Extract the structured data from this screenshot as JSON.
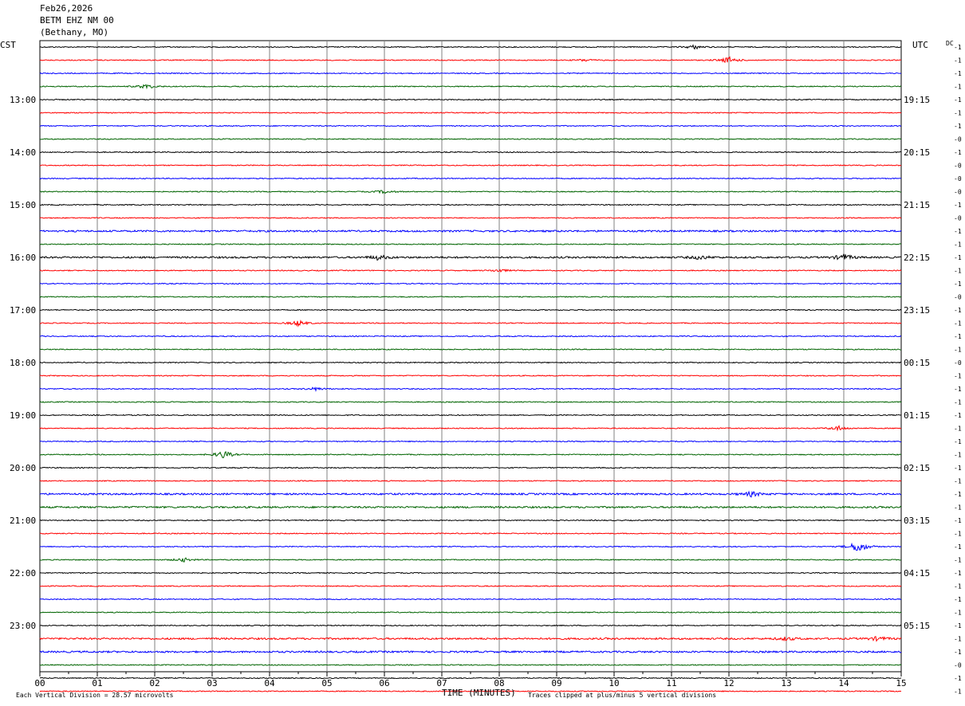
{
  "header": {
    "date": "Feb26,2026",
    "station": "BETM EHZ NM 00",
    "location": "(Bethany, MO)"
  },
  "left_tz": "CST",
  "right_tz": "UTC",
  "dc_label": "DC",
  "footer": {
    "scale": "Each Vertical Division =   28.57 microvolts",
    "xlabel": "TIME (MINUTES)",
    "clip_note": "Traces clipped at plus/minus 5 vertical divisions"
  },
  "colors": {
    "black": "#000000",
    "red": "#ff0000",
    "blue": "#0000ff",
    "green": "#006400",
    "grid": "#808080"
  },
  "chart_data": {
    "type": "line",
    "title": "BETM EHZ NM 00",
    "xlabel": "TIME (MINUTES)",
    "xlim": [
      0,
      15
    ],
    "x_ticks": [
      "00",
      "01",
      "02",
      "03",
      "04",
      "05",
      "06",
      "07",
      "08",
      "09",
      "10",
      "11",
      "12",
      "13",
      "14",
      "15"
    ],
    "color_cycle": [
      "black",
      "red",
      "blue",
      "green"
    ],
    "left_hour_labels": [
      "13:00",
      "14:00",
      "15:00",
      "16:00",
      "17:00",
      "18:00",
      "19:00",
      "20:00",
      "21:00",
      "22:00",
      "23:00"
    ],
    "right_hour_labels": [
      "19:15",
      "20:15",
      "21:15",
      "22:15",
      "23:15",
      "00:15",
      "01:15",
      "02:15",
      "03:15",
      "04:15",
      "05:15"
    ],
    "trace_offsets": [
      "-1",
      "-1",
      "-1",
      "-1",
      "-1",
      "-1",
      "-1",
      "-0",
      "-1",
      "-0",
      "-0",
      "-0",
      "-1",
      "-0",
      "-1",
      "-1",
      "-1",
      "-1",
      "-1",
      "-0",
      "-1",
      "-1",
      "-1",
      "-1",
      "-0",
      "-1",
      "-1",
      "-1",
      "-1",
      "-1",
      "-1",
      "-1",
      "-1",
      "-1",
      "-1",
      "-1",
      "-1",
      "-1",
      "-1",
      "-1",
      "-1",
      "-1",
      "-1",
      "-1",
      "-1",
      "-1",
      "-1",
      "-0",
      "-1",
      "-1"
    ],
    "events": [
      {
        "trace": 0,
        "minute": 11.4,
        "amp": 2.5
      },
      {
        "trace": 1,
        "minute": 12.0,
        "amp": 4
      },
      {
        "trace": 1,
        "minute": 9.5,
        "amp": 1.5
      },
      {
        "trace": 3,
        "minute": 1.85,
        "amp": 3
      },
      {
        "trace": 11,
        "minute": 6.0,
        "amp": 2
      },
      {
        "trace": 16,
        "minute": 5.9,
        "amp": 3
      },
      {
        "trace": 16,
        "minute": 14.0,
        "amp": 4
      },
      {
        "trace": 16,
        "minute": 11.5,
        "amp": 2.5
      },
      {
        "trace": 17,
        "minute": 8.0,
        "amp": 2
      },
      {
        "trace": 21,
        "minute": 4.5,
        "amp": 3.5
      },
      {
        "trace": 26,
        "minute": 4.8,
        "amp": 2
      },
      {
        "trace": 29,
        "minute": 13.9,
        "amp": 3
      },
      {
        "trace": 31,
        "minute": 3.2,
        "amp": 5
      },
      {
        "trace": 34,
        "minute": 12.4,
        "amp": 3
      },
      {
        "trace": 38,
        "minute": 14.25,
        "amp": 8
      },
      {
        "trace": 39,
        "minute": 2.5,
        "amp": 2.5
      },
      {
        "trace": 45,
        "minute": 13.0,
        "amp": 2
      },
      {
        "trace": 45,
        "minute": 14.6,
        "amp": 2.5
      }
    ],
    "noisy_traces": [
      14,
      16,
      34,
      35,
      46,
      45
    ]
  }
}
